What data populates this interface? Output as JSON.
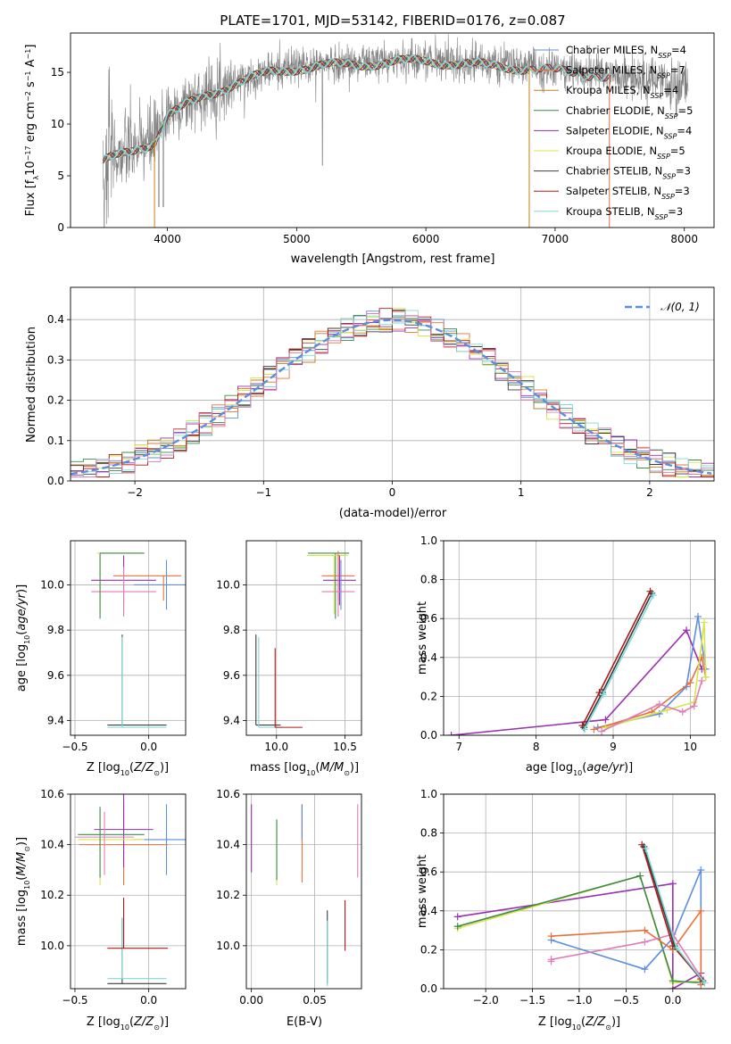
{
  "colors": {
    "chabrier_miles": "#5b8ede",
    "salpeter_miles": "#e8703a",
    "kroupa_miles": "#c87d1c",
    "chabrier_elodie": "#3c8a4a",
    "salpeter_elodie": "#9a2fb4",
    "kroupa_elodie": "#d8e34a",
    "chabrier_stelib": "#3c3c3c",
    "salpeter_stelib": "#b01818",
    "kroupa_stelib": "#7fd9d9",
    "pink": "#e07cb8",
    "observed": "#808080",
    "grid": "#b0b0b0"
  },
  "chart_data": [
    {
      "id": "spectrum",
      "type": "line",
      "title": "PLATE=1701, MJD=53142, FIBERID=0176, z=0.087",
      "xlabel": "wavelength [Angstrom, rest frame]",
      "ylabel": "Flux [fλ10⁻¹⁷ erg cm⁻² s⁻¹ A⁻¹]",
      "xlim": [
        3250,
        8230
      ],
      "ylim": [
        0,
        18.8
      ],
      "xticks": [
        "4000",
        "5000",
        "6000",
        "7000",
        "8000"
      ],
      "yticks": [
        "0",
        "5",
        "10",
        "15"
      ],
      "grid": false,
      "legend_position": "top-right",
      "legend": [
        {
          "label": "Chabrier MILES, NSSP=4",
          "color_key": "chabrier_miles"
        },
        {
          "label": "Salpeter MILES, NSSP=7",
          "color_key": "salpeter_miles"
        },
        {
          "label": "Kroupa MILES, NSSP=4",
          "color_key": "kroupa_miles"
        },
        {
          "label": "Chabrier ELODIE, NSSP=5",
          "color_key": "chabrier_elodie"
        },
        {
          "label": "Salpeter ELODIE, NSSP=4",
          "color_key": "salpeter_elodie"
        },
        {
          "label": "Kroupa ELODIE, NSSP=5",
          "color_key": "kroupa_elodie"
        },
        {
          "label": "Chabrier STELIB, NSSP=3",
          "color_key": "chabrier_stelib"
        },
        {
          "label": "Salpeter STELIB, NSSP=3",
          "color_key": "salpeter_stelib"
        },
        {
          "label": "Kroupa STELIB, NSSP=3",
          "color_key": "kroupa_stelib"
        }
      ],
      "continuum": {
        "x": [
          3500,
          3700,
          3900,
          4000,
          4300,
          4500,
          4800,
          5000,
          5200,
          5500,
          5800,
          6000,
          6300,
          6500,
          6800,
          7000,
          7300,
          7500,
          7800,
          8000
        ],
        "y": [
          6.5,
          7.5,
          8.5,
          11.0,
          13.0,
          14.0,
          15.2,
          15.6,
          15.8,
          16.0,
          16.2,
          16.3,
          16.0,
          15.8,
          15.6,
          15.3,
          15.0,
          14.6,
          14.0,
          13.6
        ]
      },
      "model_range": [
        3500,
        7430
      ],
      "observed_range": [
        3500,
        8030
      ]
    },
    {
      "id": "residuals",
      "type": "histogram",
      "xlabel": "(data-model)/error",
      "ylabel": "Normed distribution",
      "xlim": [
        -2.5,
        2.5
      ],
      "ylim": [
        0,
        0.48
      ],
      "xticks": [
        "−2",
        "−1",
        "0",
        "1",
        "2"
      ],
      "yticks": [
        "0.0",
        "0.1",
        "0.2",
        "0.3",
        "0.4"
      ],
      "grid": true,
      "legend_position": "top-right",
      "legend": [
        {
          "label": "𝒩(0, 1)",
          "color_key": "chabrier_miles"
        }
      ],
      "bin_width": 0.1
    },
    {
      "id": "age-metal",
      "type": "scatter",
      "xlabel": "Z [log₁₀(Z/Z⊙)]",
      "ylabel": "age  [log₁₀(age/yr)]",
      "xlim": [
        -0.53,
        0.25
      ],
      "ylim": [
        9.335,
        10.195
      ],
      "xticks": [
        "−0.5",
        "0.0"
      ],
      "yticks": [
        "9.4",
        "9.6",
        "9.8",
        "10.0"
      ],
      "grid": true,
      "points": [
        {
          "color_key": "chabrier_miles",
          "x": 0.12,
          "y": 10.0,
          "xerr": [
            0.22,
            0.22
          ],
          "yerr": [
            0.11,
            0.11
          ]
        },
        {
          "color_key": "salpeter_miles",
          "x": 0.1,
          "y": 10.04,
          "xerr": [
            0.34,
            0.12
          ],
          "yerr": [
            0.11,
            0.0
          ]
        },
        {
          "color_key": "salpeter_elodie",
          "x": -0.17,
          "y": 10.02,
          "xerr": [
            0.22,
            0.22
          ],
          "yerr": [
            0.11,
            0.11
          ]
        },
        {
          "color_key": "pink",
          "x": -0.17,
          "y": 9.97,
          "xerr": [
            0.22,
            0.22
          ],
          "yerr": [
            0.11,
            0.11
          ]
        },
        {
          "color_key": "kroupa_elodie",
          "x": -0.33,
          "y": 10.14,
          "xerr": [
            0.02,
            0.3
          ],
          "yerr": [
            0.26,
            0.0
          ]
        },
        {
          "color_key": "chabrier_elodie",
          "x": -0.33,
          "y": 10.14,
          "xerr": [
            0.0,
            0.3
          ],
          "yerr": [
            0.29,
            0.0
          ]
        },
        {
          "color_key": "chabrier_stelib",
          "x": -0.18,
          "y": 9.38,
          "xerr": [
            0.1,
            0.3
          ],
          "yerr": [
            0.0,
            0.4
          ]
        },
        {
          "color_key": "kroupa_stelib",
          "x": -0.18,
          "y": 9.37,
          "xerr": [
            0.1,
            0.3
          ],
          "yerr": [
            0.0,
            0.4
          ]
        }
      ]
    },
    {
      "id": "age-mass",
      "type": "scatter",
      "xlabel": "mass [log₁₀(M/M⊙)]",
      "ylabel": "",
      "xlim": [
        9.78,
        10.62
      ],
      "ylim": [
        9.335,
        10.195
      ],
      "xticks": [
        "10.0",
        "10.5"
      ],
      "yticks": [
        "9.4",
        "9.6",
        "9.8",
        "10.0"
      ],
      "grid": true,
      "points": [
        {
          "color_key": "chabrier_elodie",
          "x": 10.43,
          "y": 10.14,
          "xerr": [
            0.2,
            0.1
          ],
          "yerr": [
            0.29,
            0.0
          ]
        },
        {
          "color_key": "kroupa_elodie",
          "x": 10.42,
          "y": 10.13,
          "xerr": [
            0.2,
            0.1
          ],
          "yerr": [
            0.26,
            0.0
          ]
        },
        {
          "color_key": "salpeter_miles",
          "x": 10.45,
          "y": 10.04,
          "xerr": [
            0.12,
            0.12
          ],
          "yerr": [
            0.11,
            0.11
          ]
        },
        {
          "color_key": "salpeter_elodie",
          "x": 10.46,
          "y": 10.02,
          "xerr": [
            0.12,
            0.12
          ],
          "yerr": [
            0.11,
            0.11
          ]
        },
        {
          "color_key": "pink",
          "x": 10.45,
          "y": 9.97,
          "xerr": [
            0.12,
            0.12
          ],
          "yerr": [
            0.11,
            0.11
          ]
        },
        {
          "color_key": "chabrier_miles",
          "x": 10.47,
          "y": 10.0,
          "xerr": [
            0.0,
            0.0
          ],
          "yerr": [
            0.11,
            0.11
          ]
        },
        {
          "color_key": "chabrier_stelib",
          "x": 9.85,
          "y": 9.38,
          "xerr": [
            0.0,
            0.18
          ],
          "yerr": [
            0.0,
            0.4
          ]
        },
        {
          "color_key": "kroupa_stelib",
          "x": 9.87,
          "y": 9.37,
          "xerr": [
            0.0,
            0.18
          ],
          "yerr": [
            0.0,
            0.4
          ]
        },
        {
          "color_key": "salpeter_stelib",
          "x": 9.99,
          "y": 9.37,
          "xerr": [
            0.0,
            0.2
          ],
          "yerr": [
            0.0,
            0.35
          ]
        }
      ]
    },
    {
      "id": "weight-age",
      "type": "line",
      "xlabel": "age  [log₁₀(age/yr)]",
      "ylabel": "mass weight",
      "xlim": [
        6.8,
        10.32
      ],
      "ylim": [
        0,
        1.0
      ],
      "xticks": [
        "7",
        "8",
        "9",
        "10"
      ],
      "yticks": [
        "0.0",
        "0.2",
        "0.4",
        "0.6",
        "0.8",
        "1.0"
      ],
      "grid": true,
      "series": [
        {
          "color_key": "salpeter_elodie",
          "x": [
            6.9,
            8.9,
            9.95,
            10.15
          ],
          "y": [
            0.0,
            0.08,
            0.54,
            0.34
          ]
        },
        {
          "color_key": "salpeter_stelib",
          "x": 8.6,
          "y": 0.05,
          "xs": [
            8.6,
            8.82,
            9.48
          ],
          "ys": [
            0.05,
            0.22,
            0.74
          ]
        },
        {
          "color_key": "chabrier_stelib",
          "xs": [
            8.62,
            8.86,
            9.5
          ],
          "ys": [
            0.04,
            0.22,
            0.73
          ]
        },
        {
          "color_key": "kroupa_stelib",
          "xs": [
            8.63,
            8.87,
            9.52
          ],
          "ys": [
            0.03,
            0.21,
            0.72
          ]
        },
        {
          "color_key": "chabrier_miles",
          "xs": [
            8.8,
            9.6,
            9.95,
            10.1,
            10.2
          ],
          "ys": [
            0.04,
            0.11,
            0.25,
            0.61,
            0.34
          ]
        },
        {
          "color_key": "salpeter_miles",
          "xs": [
            8.75,
            9.5,
            10.0,
            10.15,
            10.2
          ],
          "ys": [
            0.03,
            0.12,
            0.27,
            0.4,
            0.3
          ]
        },
        {
          "color_key": "kroupa_elodie",
          "xs": [
            8.9,
            9.7,
            10.05,
            10.18,
            10.2
          ],
          "ys": [
            0.04,
            0.13,
            0.17,
            0.58,
            0.3
          ]
        },
        {
          "color_key": "pink",
          "xs": [
            8.85,
            9.6,
            9.9,
            10.05,
            10.15
          ],
          "ys": [
            0.02,
            0.16,
            0.12,
            0.15,
            0.28
          ]
        }
      ]
    },
    {
      "id": "mass-metal",
      "type": "scatter",
      "xlabel": "Z [log₁₀(Z/Z⊙)]",
      "ylabel": "mass [log₁₀(M/M⊙)]",
      "xlim": [
        -0.53,
        0.25
      ],
      "ylim": [
        9.83,
        10.6
      ],
      "xticks": [
        "−0.5",
        "0.0"
      ],
      "yticks": [
        "10.0",
        "10.2",
        "10.4",
        "10.6"
      ],
      "grid": true,
      "points": [
        {
          "color_key": "chabrier_miles",
          "x": 0.12,
          "y": 10.42,
          "xerr": [
            0.22,
            0.22
          ],
          "yerr": [
            0.14,
            0.14
          ]
        },
        {
          "color_key": "salpeter_miles",
          "x": -0.17,
          "y": 10.4,
          "xerr": [
            0.3,
            0.3
          ],
          "yerr": [
            0.16,
            0.16
          ]
        },
        {
          "color_key": "salpeter_elodie",
          "x": -0.17,
          "y": 10.46,
          "xerr": [
            0.2,
            0.2
          ],
          "yerr": [
            0.15,
            0.15
          ]
        },
        {
          "color_key": "kroupa_elodie",
          "x": -0.33,
          "y": 10.42,
          "xerr": [
            0.15,
            0.3
          ],
          "yerr": [
            0.18,
            0.12
          ]
        },
        {
          "color_key": "chabrier_elodie",
          "x": -0.33,
          "y": 10.44,
          "xerr": [
            0.15,
            0.3
          ],
          "yerr": [
            0.17,
            0.11
          ]
        },
        {
          "color_key": "pink",
          "x": -0.3,
          "y": 10.43,
          "xerr": [
            0.2,
            0.2
          ],
          "yerr": [
            0.15,
            0.1
          ]
        },
        {
          "color_key": "chabrier_stelib",
          "x": -0.18,
          "y": 9.85,
          "xerr": [
            0.1,
            0.3
          ],
          "yerr": [
            0.0,
            0.26
          ]
        },
        {
          "color_key": "kroupa_stelib",
          "x": -0.18,
          "y": 9.87,
          "xerr": [
            0.1,
            0.3
          ],
          "yerr": [
            0.0,
            0.24
          ]
        },
        {
          "color_key": "salpeter_stelib",
          "x": -0.17,
          "y": 9.99,
          "xerr": [
            0.11,
            0.3
          ],
          "yerr": [
            0.0,
            0.2
          ]
        }
      ]
    },
    {
      "id": "mass-ebv",
      "type": "scatter",
      "xlabel": "E(B-V)",
      "ylabel": "",
      "xlim": [
        -0.004,
        0.087
      ],
      "ylim": [
        9.83,
        10.6
      ],
      "xticks": [
        "0.00",
        "0.05"
      ],
      "yticks": [
        "10.0",
        "10.2",
        "10.4",
        "10.6"
      ],
      "grid": true,
      "points": [
        {
          "color_key": "salpeter_elodie",
          "x": 0.0,
          "y": 10.42,
          "yerr": [
            0.13,
            0.14
          ]
        },
        {
          "color_key": "kroupa_elodie",
          "x": 0.02,
          "y": 10.42,
          "yerr": [
            0.18,
            0.08
          ]
        },
        {
          "color_key": "chabrier_elodie",
          "x": 0.02,
          "y": 10.44,
          "yerr": [
            0.18,
            0.06
          ]
        },
        {
          "color_key": "salpeter_miles",
          "x": 0.04,
          "y": 10.4,
          "yerr": [
            0.15,
            0.16
          ]
        },
        {
          "color_key": "chabrier_miles",
          "x": 0.04,
          "y": 10.42,
          "yerr": [
            0.0,
            0.14
          ]
        },
        {
          "color_key": "chabrier_stelib",
          "x": 0.06,
          "y": 10.02,
          "yerr": [
            0.17,
            0.12
          ]
        },
        {
          "color_key": "kroupa_stelib",
          "x": 0.06,
          "y": 10.0,
          "yerr": [
            0.16,
            0.1
          ]
        },
        {
          "color_key": "salpeter_stelib",
          "x": 0.074,
          "y": 10.06,
          "yerr": [
            0.08,
            0.12
          ]
        },
        {
          "color_key": "pink",
          "x": 0.084,
          "y": 10.4,
          "yerr": [
            0.13,
            0.16
          ]
        }
      ]
    },
    {
      "id": "weight-metal",
      "type": "line",
      "xlabel": "Z [log₁₀(Z/Z⊙)]",
      "ylabel": "mass weight",
      "xlim": [
        -2.45,
        0.45
      ],
      "ylim": [
        0,
        1.0
      ],
      "xticks": [
        "−2.0",
        "−1.5",
        "−1.0",
        "−0.5",
        "0.0"
      ],
      "yticks": [
        "0.0",
        "0.2",
        "0.4",
        "0.6",
        "0.8",
        "1.0"
      ],
      "grid": true,
      "series": [
        {
          "color_key": "salpeter_elodie",
          "xs": [
            -2.3,
            0.0,
            0.0,
            0.3
          ],
          "ys": [
            0.37,
            0.54,
            0.0,
            0.08
          ]
        },
        {
          "color_key": "kroupa_elodie",
          "xs": [
            -2.3,
            -0.35,
            0.0,
            0.3
          ],
          "ys": [
            0.31,
            0.58,
            0.03,
            0.04
          ]
        },
        {
          "color_key": "chabrier_elodie",
          "xs": [
            -2.3,
            -0.35,
            0.0,
            0.3
          ],
          "ys": [
            0.32,
            0.58,
            0.04,
            0.03
          ]
        },
        {
          "color_key": "chabrier_miles",
          "xs": [
            -1.3,
            -0.3,
            0.0,
            0.3,
            0.3
          ],
          "ys": [
            0.25,
            0.1,
            0.26,
            0.61,
            0.03
          ]
        },
        {
          "color_key": "salpeter_miles",
          "xs": [
            -1.3,
            -0.3,
            0.0,
            0.3,
            0.3
          ],
          "ys": [
            0.27,
            0.3,
            0.2,
            0.4,
            0.02
          ]
        },
        {
          "color_key": "pink",
          "xs": [
            -1.3,
            -1.3,
            -0.3,
            0.0,
            0.3
          ],
          "ys": [
            0.14,
            0.15,
            0.24,
            0.28,
            0.06
          ]
        },
        {
          "color_key": "salpeter_stelib",
          "xs": [
            -0.33,
            0.0,
            0.3
          ],
          "ys": [
            0.74,
            0.22,
            0.05
          ]
        },
        {
          "color_key": "chabrier_stelib",
          "xs": [
            -0.31,
            0.02,
            0.32
          ],
          "ys": [
            0.73,
            0.22,
            0.04
          ]
        },
        {
          "color_key": "kroupa_stelib",
          "xs": [
            -0.29,
            0.04,
            0.34
          ],
          "ys": [
            0.72,
            0.21,
            0.03
          ]
        }
      ]
    }
  ]
}
